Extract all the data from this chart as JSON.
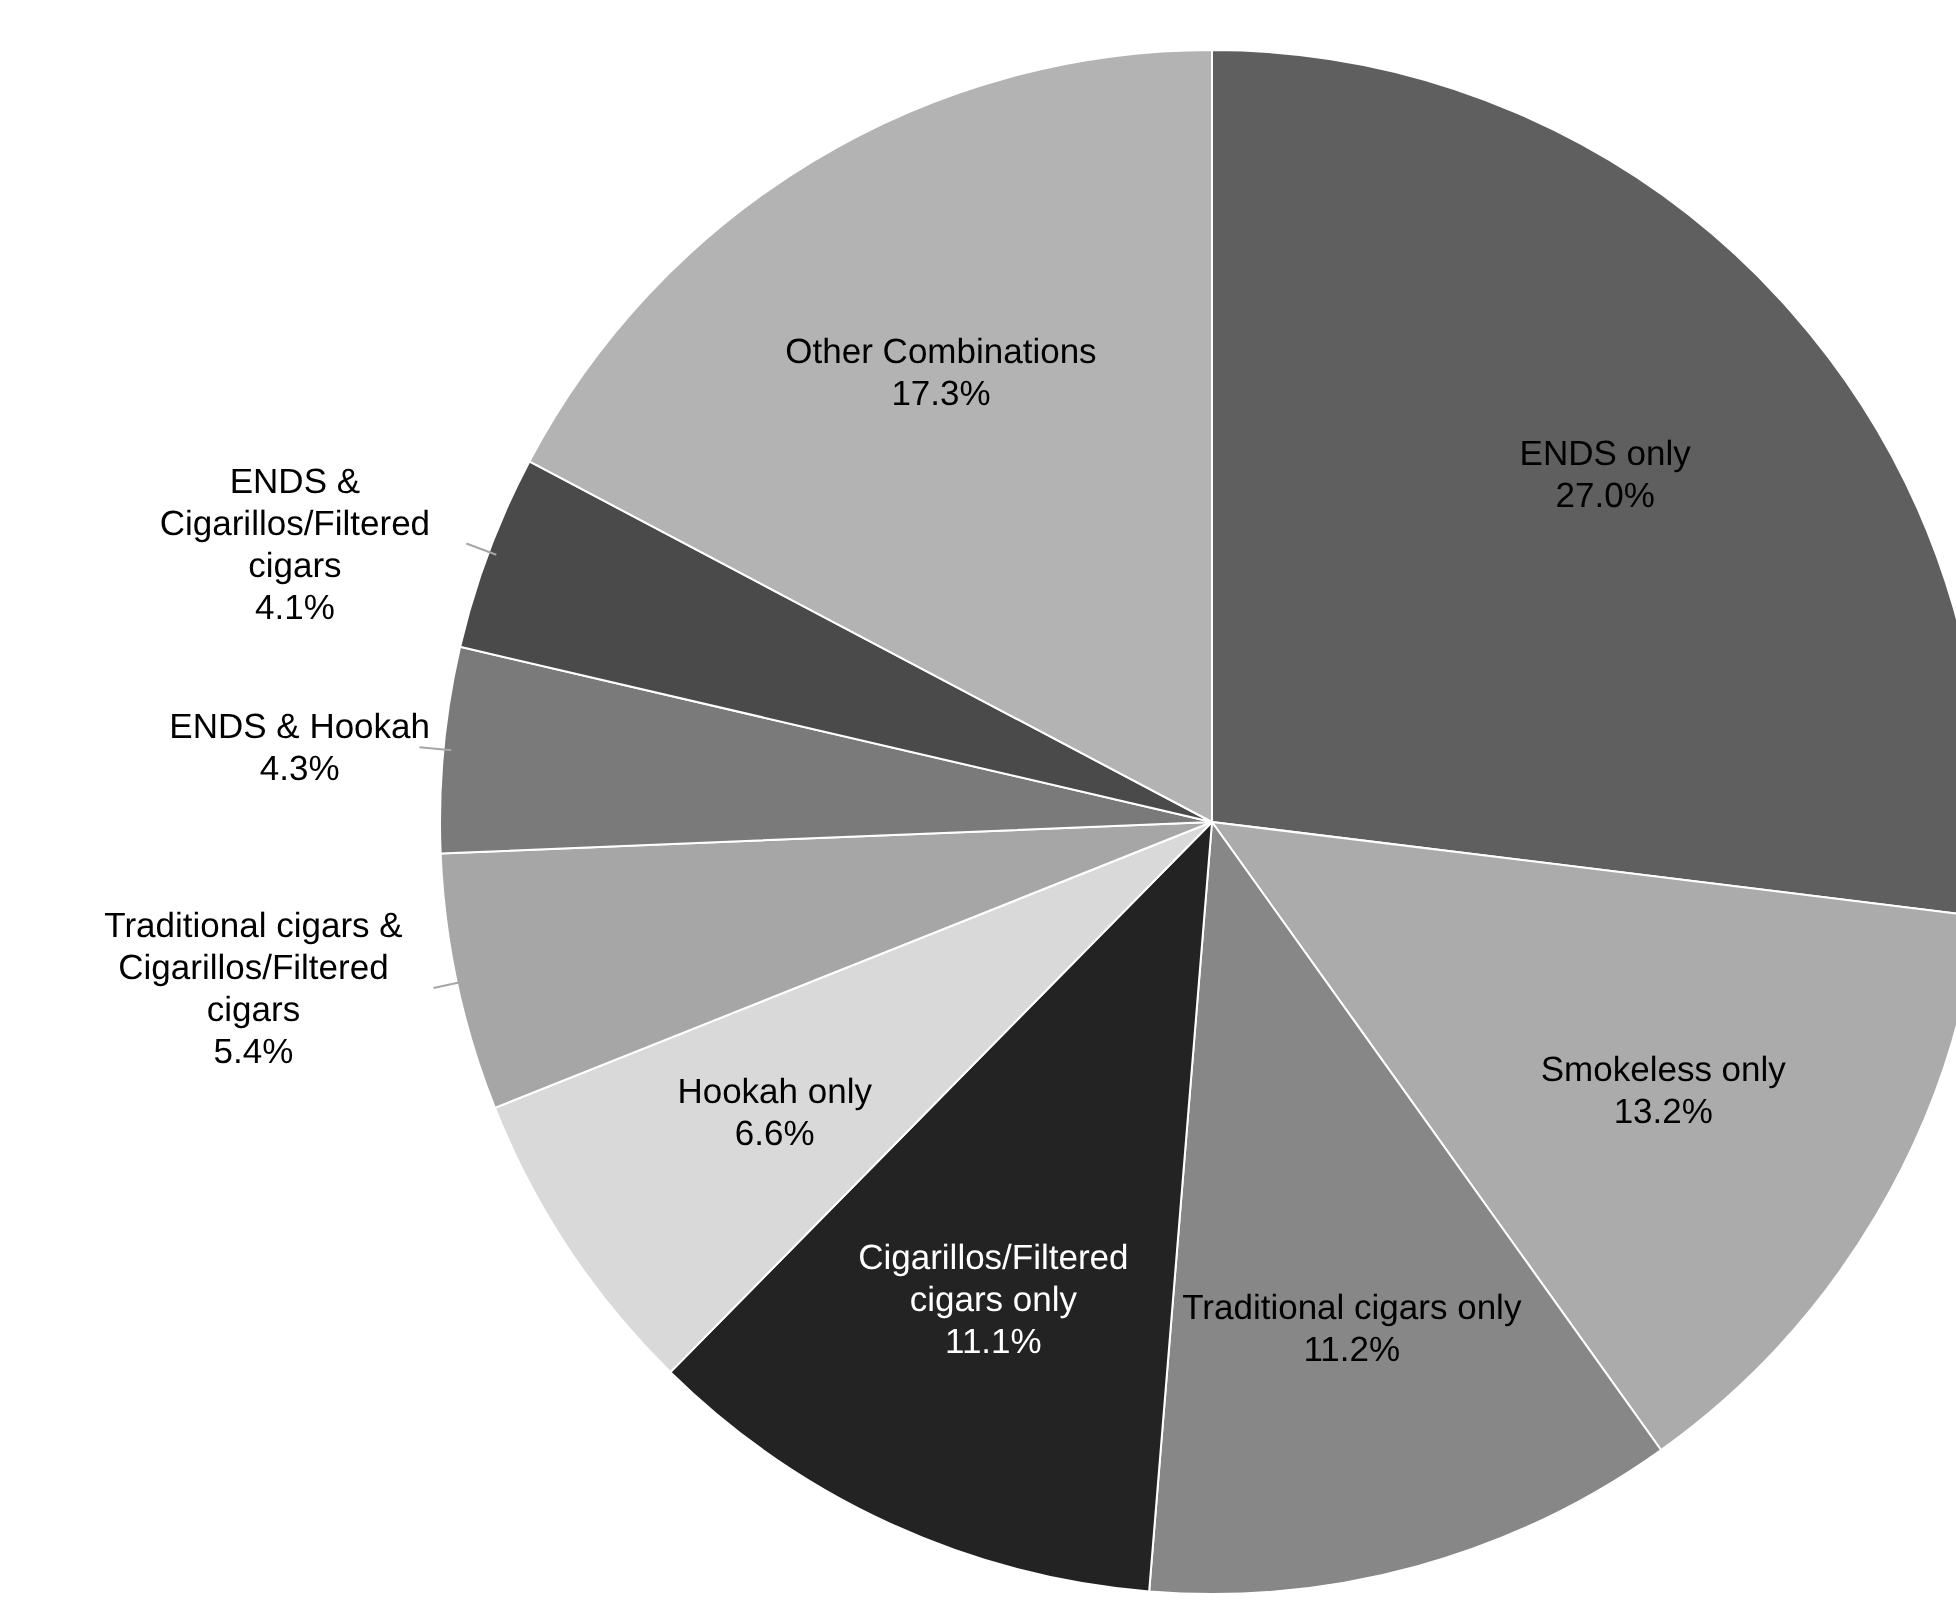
{
  "chart_data": {
    "type": "pie",
    "categories": [
      "ENDS only",
      "Smokeless only",
      "Traditional cigars only",
      "Cigarillos/Filtered cigars only",
      "Hookah only",
      "Traditional cigars & Cigarillos/Filtered cigars",
      "ENDS & Hookah",
      "ENDS & Cigarillos/Filtered cigars",
      "Other Combinations"
    ],
    "values": [
      27.0,
      13.2,
      11.2,
      11.1,
      6.6,
      5.4,
      4.3,
      4.1,
      17.3
    ],
    "value_labels": [
      "27.0%",
      "13.2%",
      "11.2%",
      "11.1%",
      "6.6%",
      "5.4%",
      "4.3%",
      "4.1%",
      "17.3%"
    ],
    "colors": [
      "#5f5f5f",
      "#ababab",
      "#878787",
      "#232323",
      "#d9d9d9",
      "#a6a6a6",
      "#7a7a7a",
      "#4a4a4a",
      "#b3b3b3"
    ]
  }
}
